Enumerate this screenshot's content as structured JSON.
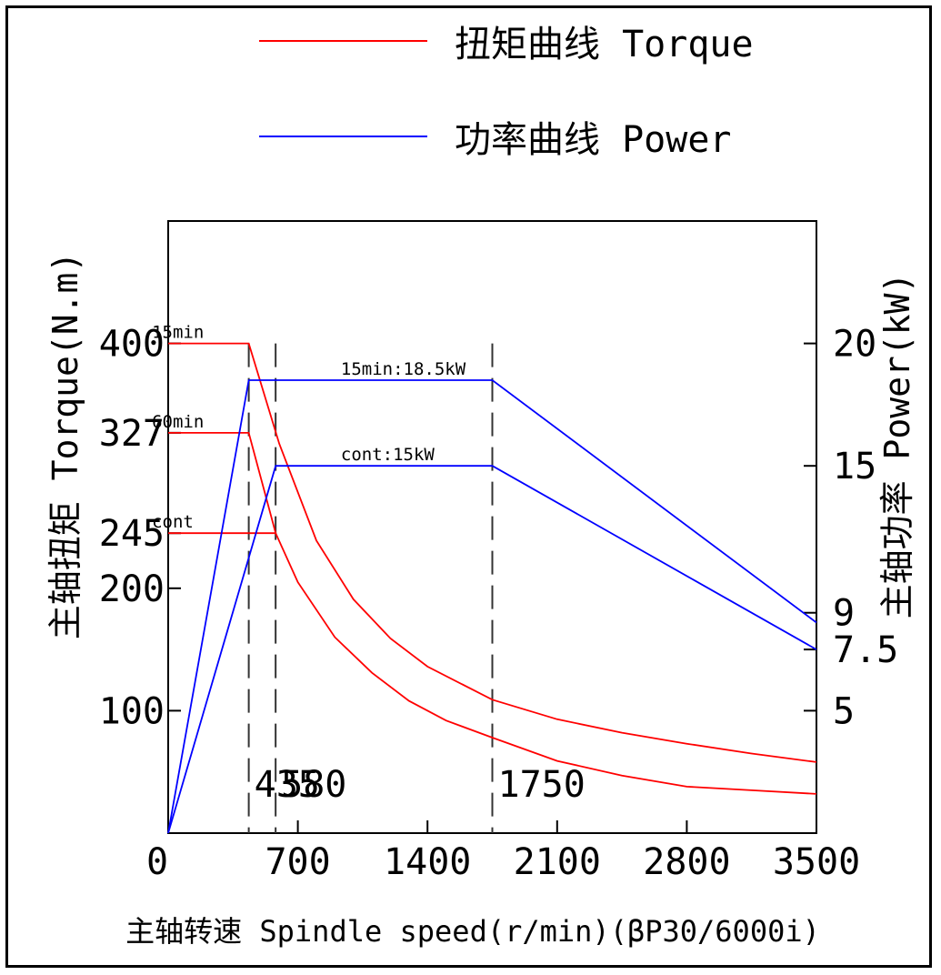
{
  "legend": {
    "torque": {
      "label": "扭矩曲线 Torque",
      "color": "#ff0000"
    },
    "power": {
      "label": "功率曲线 Power",
      "color": "#0000ff"
    }
  },
  "chart_data": {
    "type": "line",
    "xlabel": "主轴转速 Spindle speed(r/min)(βP30/6000i)",
    "ylabel_left": "主轴扭矩 Torque(N.m)",
    "ylabel_right": "主轴功率 Power(kW)",
    "xlim": [
      0,
      3500
    ],
    "ylim_left": [
      0,
      500
    ],
    "ylim_right": [
      0,
      25
    ],
    "x_ticks": [
      0,
      700,
      1400,
      2100,
      2800,
      3500
    ],
    "x_tick_labels": [
      "0",
      "700",
      "1400",
      "2100",
      "2800",
      "3500"
    ],
    "left_ticks": [
      100,
      200,
      245,
      327,
      400
    ],
    "left_tick_labels": [
      "100",
      "200",
      "245",
      "327",
      "400"
    ],
    "right_ticks": [
      5,
      7.5,
      9,
      15,
      20
    ],
    "right_tick_labels": [
      "5",
      "7.5",
      "9",
      "15",
      "20"
    ],
    "vlines": [
      {
        "x": 435,
        "label": "435"
      },
      {
        "x": 580,
        "label": "580"
      },
      {
        "x": 1750,
        "label": "1750"
      }
    ],
    "series": [
      {
        "axis": "left",
        "color": "#ff0000",
        "points": [
          [
            0,
            400
          ],
          [
            435,
            400
          ],
          [
            600,
            318
          ],
          [
            800,
            239
          ],
          [
            1000,
            191
          ],
          [
            1200,
            159
          ],
          [
            1400,
            136
          ],
          [
            1750,
            109
          ],
          [
            2100,
            93
          ],
          [
            2450,
            82
          ],
          [
            2800,
            73
          ],
          [
            3150,
            65
          ],
          [
            3500,
            58
          ]
        ]
      },
      {
        "axis": "left",
        "color": "#ff0000",
        "points": [
          [
            0,
            327
          ],
          [
            435,
            327
          ],
          [
            580,
            245
          ],
          [
            700,
            205
          ],
          [
            900,
            160
          ],
          [
            1100,
            131
          ],
          [
            1300,
            108
          ],
          [
            1500,
            92
          ],
          [
            1750,
            78
          ],
          [
            2100,
            59
          ],
          [
            2450,
            47
          ],
          [
            2800,
            38
          ],
          [
            3150,
            35
          ],
          [
            3500,
            32
          ]
        ]
      },
      {
        "axis": "left",
        "color": "#ff0000",
        "points": [
          [
            0,
            245
          ],
          [
            580,
            245
          ]
        ]
      },
      {
        "axis": "right",
        "color": "#0000ff",
        "points": [
          [
            0,
            0
          ],
          [
            435,
            18.5
          ],
          [
            1750,
            18.5
          ],
          [
            3500,
            8.6
          ]
        ]
      },
      {
        "axis": "right",
        "color": "#0000ff",
        "points": [
          [
            0,
            0
          ],
          [
            580,
            15
          ],
          [
            1750,
            15
          ],
          [
            3500,
            7.5
          ]
        ]
      }
    ],
    "annotations": [
      {
        "text": "15min",
        "x": 30,
        "y": 400,
        "axis": "left"
      },
      {
        "text": "60min",
        "x": 30,
        "y": 327,
        "axis": "left"
      },
      {
        "text": "cont",
        "x": 30,
        "y": 245,
        "axis": "left"
      },
      {
        "text": "15min:18.5kW",
        "x": 1050,
        "y": 18.5,
        "axis": "right"
      },
      {
        "text": "cont:15kW",
        "x": 1050,
        "y": 15,
        "axis": "right"
      }
    ]
  }
}
